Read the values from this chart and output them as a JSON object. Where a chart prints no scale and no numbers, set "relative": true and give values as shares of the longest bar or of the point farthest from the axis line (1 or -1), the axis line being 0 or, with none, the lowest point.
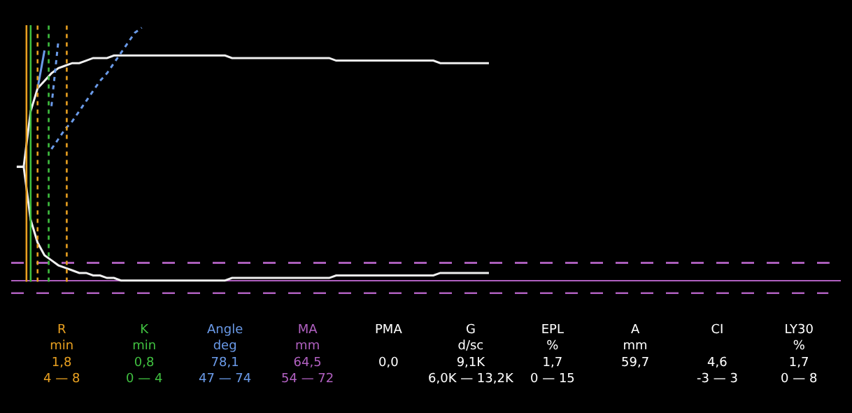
{
  "chart_data": {
    "type": "line",
    "relative": true,
    "grid": false,
    "marker": "none",
    "categories": [
      null,
      null,
      null,
      null,
      null,
      null,
      null,
      null,
      null,
      null,
      null,
      null,
      null,
      null,
      null,
      null,
      null,
      null,
      null,
      null,
      null,
      null,
      null,
      null,
      null,
      null,
      null,
      null,
      null,
      null,
      null,
      null,
      null,
      null,
      null,
      null,
      null,
      null,
      null,
      null,
      null,
      null,
      null,
      null,
      null,
      null,
      null,
      null,
      null,
      null,
      null,
      null,
      null,
      null,
      null,
      null,
      null,
      null,
      null,
      null,
      null,
      null,
      null,
      null,
      null,
      null,
      null,
      null,
      null
    ],
    "series": [
      {
        "color": "#f0f0f0",
        "values": [
          0.45,
          0.45,
          0.67,
          0.76,
          0.79,
          0.82,
          0.84,
          0.85,
          0.86,
          0.86,
          0.87,
          0.88,
          0.88,
          0.88,
          0.89,
          0.89,
          0.89,
          0.89,
          0.89,
          0.89,
          0.89,
          0.89,
          0.89,
          0.89,
          0.89,
          0.89,
          0.89,
          0.89,
          0.89,
          0.89,
          0.89,
          0.88,
          0.88,
          0.88,
          0.88,
          0.88,
          0.88,
          0.88,
          0.88,
          0.88,
          0.88,
          0.88,
          0.88,
          0.88,
          0.88,
          0.88,
          0.87,
          0.87,
          0.87,
          0.87,
          0.87,
          0.87,
          0.87,
          0.87,
          0.87,
          0.87,
          0.87,
          0.87,
          0.87,
          0.87,
          0.87,
          0.86,
          0.86,
          0.86,
          0.86,
          0.86,
          0.86,
          0.86,
          0.86
        ]
      },
      {
        "color": "#f0f0f0",
        "values": [
          0.45,
          0.45,
          0.24,
          0.15,
          0.1,
          0.08,
          0.06,
          0.05,
          0.04,
          0.03,
          0.03,
          0.02,
          0.02,
          0.01,
          0.01,
          0.0,
          0.0,
          0.0,
          0.0,
          0.0,
          0.0,
          0.0,
          0.0,
          0.0,
          0.0,
          0.0,
          0.0,
          0.0,
          0.0,
          0.0,
          0.0,
          0.01,
          0.01,
          0.01,
          0.01,
          0.01,
          0.01,
          0.01,
          0.01,
          0.01,
          0.01,
          0.01,
          0.01,
          0.01,
          0.01,
          0.01,
          0.02,
          0.02,
          0.02,
          0.02,
          0.02,
          0.02,
          0.02,
          0.02,
          0.02,
          0.02,
          0.02,
          0.02,
          0.02,
          0.02,
          0.02,
          0.03,
          0.03,
          0.03,
          0.03,
          0.03,
          0.03,
          0.03,
          0.03
        ]
      },
      {
        "color": "#6a9ae8",
        "line_style": "solid",
        "values": [
          null,
          null,
          null,
          0.76,
          0.91,
          null,
          null,
          null,
          null,
          null,
          null,
          null,
          null,
          null,
          null,
          null,
          null,
          null,
          null,
          null,
          null,
          null,
          null,
          null,
          null,
          null,
          null,
          null,
          null,
          null,
          null,
          null,
          null,
          null,
          null,
          null,
          null,
          null,
          null,
          null,
          null,
          null,
          null,
          null,
          null,
          null,
          null,
          null,
          null,
          null,
          null,
          null,
          null,
          null,
          null,
          null,
          null,
          null,
          null,
          null,
          null,
          null,
          null,
          null,
          null,
          null,
          null,
          null,
          null
        ]
      },
      {
        "color": "#6a9ae8",
        "line_style": "dotted",
        "values": [
          null,
          null,
          null,
          null,
          null,
          0.52,
          0.56,
          0.6,
          0.63,
          0.67,
          0.71,
          0.75,
          0.79,
          0.82,
          0.86,
          0.9,
          0.94,
          0.98,
          1.0,
          null,
          null,
          null,
          null,
          null,
          null,
          null,
          null,
          null,
          null,
          null,
          null,
          null,
          null,
          null,
          null,
          null,
          null,
          null,
          null,
          null,
          null,
          null,
          null,
          null,
          null,
          null,
          null,
          null,
          null,
          null,
          null,
          null,
          null,
          null,
          null,
          null,
          null,
          null,
          null,
          null,
          null,
          null,
          null,
          null,
          null,
          null,
          null,
          null,
          null
        ]
      },
      {
        "color": "#6a9ae8",
        "line_style": "dotted",
        "values": [
          null,
          null,
          null,
          null,
          null,
          0.69,
          0.95,
          null,
          null,
          null,
          null,
          null,
          null,
          null,
          null,
          null,
          null,
          null,
          null,
          null,
          null,
          null,
          null,
          null,
          null,
          null,
          null,
          null,
          null,
          null,
          null,
          null,
          null,
          null,
          null,
          null,
          null,
          null,
          null,
          null,
          null,
          null,
          null,
          null,
          null,
          null,
          null,
          null,
          null,
          null,
          null,
          null,
          null,
          null,
          null,
          null,
          null,
          null,
          null,
          null,
          null,
          null,
          null,
          null,
          null,
          null,
          null,
          null,
          null
        ]
      }
    ],
    "ref_lines": [
      {
        "axis": "y",
        "value": 0.07,
        "color": "#b060c0",
        "line_style": "dashed"
      }
    ],
    "annotations": [
      "R\nmin\n1,8\n4 — 8",
      "K\nmin\n0,8\n0 — 4",
      "Angle\ndeg\n78,1\n47 — 74",
      "MA\nmm\n64,5\n54 — 72",
      "PMA\n\n0,0",
      "G\nd/sc\n9,1K\n6,0K — 13,2K",
      "EPL\n%\n1,7\n0 — 15",
      "A\nmm\n59,7",
      "CI\n\n4,6\n-3 — 3",
      "LY30\n%\n1,7\n0 — 8"
    ]
  }
}
